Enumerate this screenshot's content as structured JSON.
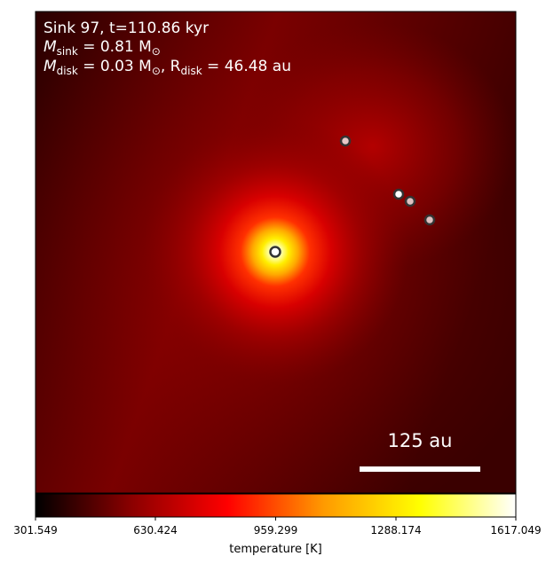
{
  "annotation": {
    "line1": "Sink 97, t=110.86 kyr",
    "line2_main": "M",
    "line2_sub": "sink",
    "line2_rest": " = 0.81 M",
    "line2_sun": "⊙",
    "line3_main": "M",
    "line3_sub": "disk",
    "line3_mid": " = 0.03 M",
    "line3_sun": "⊙",
    "line3_sep": ", R",
    "line3_sub2": "disk",
    "line3_rest": " = 46.48 au"
  },
  "scalebar": {
    "label": "125 au"
  },
  "colorbar": {
    "label": "temperature [K]",
    "ticks": [
      "301.549",
      "630.424",
      "959.299",
      "1288.174",
      "1617.049"
    ],
    "colors": [
      "#000000",
      "#8b0000",
      "#ff0000",
      "#ffa500",
      "#ffff00",
      "#ffffff"
    ]
  },
  "sinks": [
    {
      "type": "main-sink"
    },
    {
      "type": "companion"
    },
    {
      "type": "companion"
    },
    {
      "type": "companion"
    },
    {
      "type": "companion"
    }
  ]
}
